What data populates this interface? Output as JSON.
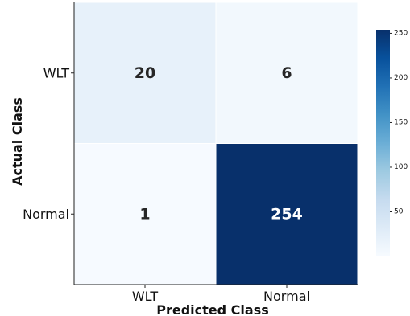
{
  "chart_data": {
    "type": "heatmap",
    "xlabel": "Predicted Class",
    "ylabel": "Actual Class",
    "x_categories": [
      "WLT",
      "Normal"
    ],
    "y_categories": [
      "WLT",
      "Normal"
    ],
    "values": [
      [
        20,
        6
      ],
      [
        1,
        254
      ]
    ],
    "colorbar": {
      "min": 0,
      "max": 254,
      "ticks": [
        50,
        100,
        150,
        200,
        250
      ],
      "colormap": "Blues",
      "low_color": "#f7fbff",
      "high_color": "#08306b"
    },
    "grid": false
  }
}
